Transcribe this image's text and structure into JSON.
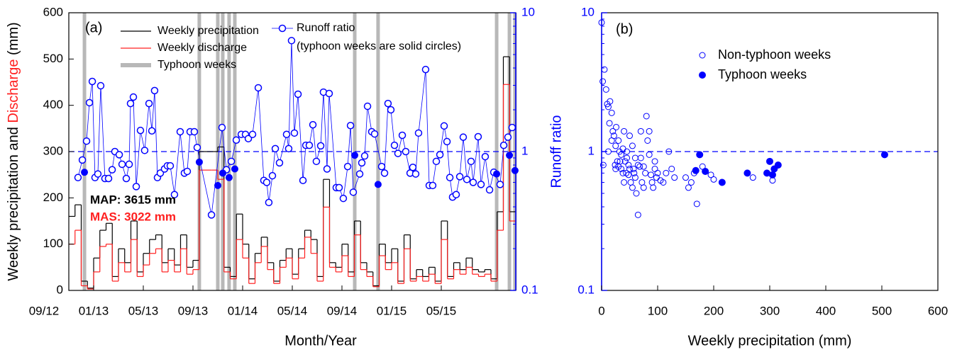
{
  "chart_data": [
    {
      "type": "step",
      "label": "(a)",
      "xlabel": "Month/Year",
      "ylabel": [
        {
          "text": "Weekly precipitation and ",
          "color": "#000000"
        },
        {
          "text": "Discharge",
          "color": "#ff2020"
        },
        {
          "text": " (mm)",
          "color": "#000000"
        }
      ],
      "y2label": "Runoff ratio",
      "y2color": "#0000ff",
      "xlim": [
        2,
        38
      ],
      "xticks": [
        {
          "value": 0,
          "label": "09/12"
        },
        {
          "value": 4,
          "label": "01/13"
        },
        {
          "value": 8,
          "label": "05/13"
        },
        {
          "value": 12,
          "label": "09/13"
        },
        {
          "value": 16,
          "label": "01/14"
        },
        {
          "value": 20,
          "label": "05/14"
        },
        {
          "value": 24,
          "label": "09/14"
        },
        {
          "value": 28,
          "label": "01/15"
        },
        {
          "value": 32,
          "label": "05/15"
        }
      ],
      "ylim": [
        0,
        600
      ],
      "yticks": [
        0,
        100,
        200,
        300,
        400,
        500,
        600
      ],
      "y2scale": "log",
      "y2lim": [
        0.1,
        10
      ],
      "y2ticks": [
        0.1,
        1,
        10
      ],
      "y2minorticks": [
        0.2,
        0.3,
        0.4,
        0.5,
        0.6,
        0.7,
        0.8,
        0.9,
        2,
        3,
        4,
        5,
        6,
        7,
        8,
        9
      ],
      "reference_line": 1,
      "x": [
        2,
        2.5,
        3,
        3.5,
        4,
        4.5,
        5,
        5.5,
        6,
        6.5,
        7,
        7.5,
        8,
        8.5,
        9,
        9.5,
        10,
        10.5,
        11,
        11.5,
        12,
        12.5,
        13,
        13.5,
        14,
        14.5,
        15,
        15.5,
        16,
        16.5,
        17,
        17.5,
        18,
        18.5,
        19,
        19.5,
        20,
        20.5,
        21,
        21.5,
        22,
        22.5,
        23,
        23.5,
        24,
        24.5,
        25,
        25.5,
        26,
        26.5,
        27,
        27.5,
        28,
        28.5,
        29,
        29.5,
        30,
        30.5,
        31,
        31.5,
        32,
        32.5,
        33,
        33.5,
        34,
        34.5,
        35,
        35.5,
        36,
        36.5,
        37,
        37.5
      ],
      "series": [
        {
          "name": "Weekly precipitation",
          "color": "#000000",
          "values": [
            160,
            185,
            20,
            5,
            70,
            130,
            145,
            30,
            90,
            60,
            150,
            40,
            80,
            110,
            120,
            60,
            90,
            55,
            120,
            50,
            65,
            300,
            300,
            300,
            310,
            50,
            30,
            165,
            100,
            25,
            80,
            115,
            60,
            20,
            65,
            90,
            35,
            90,
            130,
            110,
            30,
            240,
            60,
            50,
            100,
            40,
            150,
            60,
            40,
            10,
            100,
            60,
            90,
            20,
            120,
            25,
            45,
            30,
            50,
            20,
            150,
            30,
            60,
            45,
            70,
            45,
            40,
            45,
            25,
            170,
            505,
            170
          ]
        },
        {
          "name": "Weekly discharge",
          "color": "#ff2020",
          "values": [
            100,
            130,
            10,
            3,
            40,
            95,
            100,
            20,
            60,
            40,
            110,
            30,
            55,
            80,
            90,
            40,
            65,
            40,
            90,
            35,
            45,
            260,
            260,
            260,
            240,
            40,
            25,
            110,
            70,
            15,
            60,
            95,
            45,
            15,
            50,
            70,
            25,
            70,
            115,
            80,
            20,
            180,
            50,
            40,
            75,
            30,
            120,
            45,
            30,
            8,
            75,
            45,
            60,
            15,
            90,
            20,
            30,
            20,
            35,
            15,
            110,
            25,
            45,
            35,
            50,
            35,
            30,
            35,
            20,
            130,
            445,
            150
          ]
        }
      ],
      "typhoon": {
        "name": "Typhoon weeks",
        "color": "#b8b8b8",
        "x": [
          3.26,
          12.51,
          14.0,
          14.4,
          14.91,
          15.37,
          25.03,
          26.91,
          36.46,
          37.49,
          37.94
        ]
      },
      "runoff": {
        "name": "Runoff ratio",
        "note": "(typhoon weeks are solid circles)",
        "color": "#0000ff",
        "axis": "y2",
        "x": [
          2.74,
          3.09,
          3.43,
          3.66,
          3.89,
          4.11,
          4.34,
          4.57,
          4.91,
          5.2,
          5.49,
          5.71,
          6.06,
          6.29,
          6.63,
          6.86,
          6.97,
          7.2,
          7.43,
          7.77,
          8.11,
          8.46,
          8.69,
          8.91,
          9.14,
          9.37,
          9.71,
          9.94,
          10.17,
          10.51,
          10.97,
          11.31,
          11.54,
          11.77,
          12.11,
          12.34,
          13.49,
          14.34,
          14.69,
          15.09,
          15.49,
          15.89,
          16.23,
          16.46,
          16.8,
          17.26,
          17.71,
          17.94,
          18.11,
          18.4,
          18.63,
          18.97,
          19.54,
          19.71,
          19.94,
          20.17,
          20.46,
          20.86,
          21.09,
          21.37,
          21.66,
          21.94,
          22.29,
          22.51,
          22.8,
          22.97,
          23.54,
          23.77,
          24.11,
          24.46,
          24.69,
          24.91,
          25.43,
          25.6,
          25.83,
          26.06,
          26.4,
          26.63,
          27.2,
          27.43,
          27.71,
          27.94,
          28.23,
          28.51,
          28.86,
          29.14,
          29.49,
          29.71,
          29.94,
          30.17,
          30.74,
          31.03,
          31.31,
          31.6,
          31.89,
          32.23,
          32.46,
          32.69,
          32.91,
          33.2,
          33.49,
          33.77,
          34.06,
          34.4,
          34.57,
          34.97,
          35.2,
          35.54,
          35.89,
          36.23,
          36.74,
          37.03,
          37.37,
          37.71
        ],
        "values": [
          0.65,
          0.87,
          1.19,
          2.25,
          3.2,
          0.65,
          0.69,
          2.98,
          0.64,
          0.64,
          0.74,
          1.0,
          0.95,
          0.81,
          0.64,
          0.81,
          2.22,
          2.47,
          0.56,
          1.42,
          1.02,
          2.22,
          1.41,
          2.75,
          0.65,
          0.7,
          0.75,
          0.79,
          0.79,
          0.49,
          1.39,
          0.7,
          0.72,
          1.39,
          1.39,
          1.07,
          0.35,
          1.49,
          0.74,
          0.85,
          1.21,
          1.33,
          1.33,
          1.24,
          1.33,
          2.88,
          0.62,
          0.6,
          0.43,
          0.67,
          1.05,
          0.83,
          1.33,
          1.05,
          6.3,
          1.36,
          2.59,
          0.62,
          1.11,
          1.11,
          1.56,
          0.85,
          1.1,
          2.68,
          0.75,
          2.62,
          0.55,
          0.55,
          0.46,
          0.78,
          1.54,
          0.51,
          0.69,
          0.83,
          0.93,
          2.12,
          1.39,
          1.34,
          0.78,
          0.7,
          2.22,
          2.0,
          1.11,
          0.97,
          1.31,
          1.0,
          0.7,
          0.77,
          0.69,
          1.36,
          3.9,
          0.57,
          0.57,
          0.85,
          0.95,
          1.53,
          1.18,
          0.65,
          0.47,
          0.49,
          0.66,
          1.27,
          0.63,
          0.85,
          0.6,
          1.28,
          0.58,
          0.92,
          0.53,
          0.71,
          0.58,
          1.11,
          1.27,
          1.49
        ]
      },
      "typhoon_runoff": {
        "color": "#0000ff",
        "axis": "y2",
        "x": [
          3.26,
          12.51,
          14.0,
          14.4,
          14.91,
          15.37,
          25.03,
          26.91,
          36.46,
          37.49,
          37.94
        ],
        "values": [
          0.71,
          0.84,
          0.57,
          0.7,
          0.65,
          0.75,
          0.94,
          0.58,
          0.69,
          0.94,
          0.73
        ]
      },
      "annotations": [
        {
          "text": "MAP: 3615 mm",
          "color": "#000000"
        },
        {
          "text": "MAS: 3022 mm",
          "color": "#ff2020"
        }
      ]
    },
    {
      "type": "scatter",
      "label": "(b)",
      "xlabel": "Weekly precipitation (mm)",
      "xlim": [
        0,
        600
      ],
      "xticks": [
        0,
        100,
        200,
        300,
        400,
        500,
        600
      ],
      "yscale": "log",
      "ylim": [
        0.1,
        10
      ],
      "yticks": [
        0.1,
        1,
        10
      ],
      "ycolor": "#0000ff",
      "yminorticks": [
        0.2,
        0.3,
        0.4,
        0.5,
        0.6,
        0.7,
        0.8,
        0.9,
        2,
        3,
        4,
        5,
        6,
        7,
        8,
        9
      ],
      "reference_line": 1,
      "series": [
        {
          "name": "Non-typhoon weeks",
          "color": "#0000ff",
          "filled": false,
          "x": [
            0,
            2,
            5,
            3,
            8,
            10,
            12,
            14,
            15,
            18,
            20,
            22,
            25,
            28,
            30,
            32,
            35,
            38,
            40,
            42,
            45,
            48,
            50,
            52,
            55,
            58,
            60,
            62,
            65,
            68,
            70,
            72,
            75,
            78,
            80,
            82,
            85,
            88,
            90,
            92,
            95,
            98,
            100,
            105,
            110,
            120,
            125,
            150,
            155,
            160,
            165,
            170,
            180,
            195,
            200,
            270,
            305,
            12,
            18,
            24,
            26,
            30,
            35,
            40,
            45,
            50,
            55,
            60,
            65,
            70,
            25,
            33,
            44,
            38,
            48,
            57,
            75,
            85,
            95,
            115,
            130
          ],
          "values": [
            8.5,
            3.2,
            3.9,
            0.8,
            2.8,
            2.2,
            2.1,
            1.6,
            2.3,
            1.9,
            1.4,
            1.3,
            1.1,
            0.85,
            0.78,
            1.0,
            0.95,
            0.7,
            1.4,
            0.85,
            1.0,
            0.8,
            0.75,
            0.6,
            0.55,
            0.7,
            0.65,
            0.5,
            0.35,
            0.78,
            0.9,
            0.6,
            0.55,
            0.7,
            1.8,
            1.2,
            0.95,
            0.68,
            0.6,
            0.55,
            0.75,
            0.65,
            0.7,
            0.62,
            0.6,
            1.0,
            0.75,
            0.65,
            0.55,
            0.6,
            0.7,
            0.42,
            0.78,
            0.68,
            0.63,
            0.65,
            0.62,
            1.0,
            1.2,
            0.8,
            1.5,
            1.2,
            0.75,
            0.6,
            0.9,
            1.3,
            1.1,
            0.9,
            0.8,
            1.4,
            0.75,
            0.85,
            0.7,
            1.05,
            0.68,
            0.75,
            0.78,
            1.4,
            0.85,
            0.7,
            0.65
          ]
        },
        {
          "name": "Typhoon weeks",
          "color": "#0000ff",
          "filled": true,
          "x": [
            175,
            168,
            185,
            215,
            260,
            295,
            300,
            305,
            308,
            315,
            505
          ],
          "values": [
            0.95,
            0.73,
            0.72,
            0.6,
            0.7,
            0.7,
            0.85,
            0.68,
            0.75,
            0.8,
            0.95
          ]
        }
      ]
    }
  ]
}
